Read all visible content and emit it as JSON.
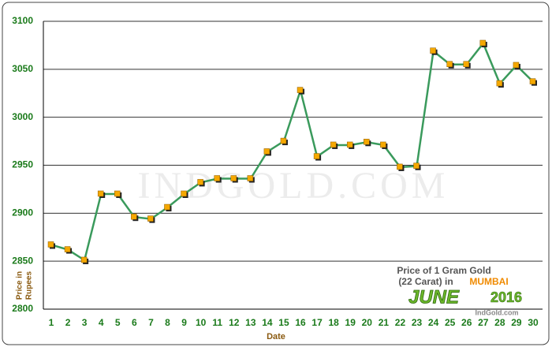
{
  "chart_data": {
    "type": "line",
    "watermark": "INDGOLD.COM",
    "xlabel": "Date",
    "ylabel": [
      "Price in",
      "Rupees"
    ],
    "caption": {
      "line1": "Price of 1 Gram Gold",
      "line2": "(22 Carat) in",
      "city": "MUMBAI",
      "month": "JUNE",
      "year": "2016",
      "source": "IndGold.com"
    },
    "categories": [
      "1",
      "2",
      "3",
      "4",
      "5",
      "6",
      "7",
      "8",
      "9",
      "10",
      "11",
      "12",
      "13",
      "14",
      "15",
      "16",
      "17",
      "18",
      "19",
      "20",
      "21",
      "22",
      "23",
      "24",
      "25",
      "26",
      "27",
      "28",
      "29",
      "30"
    ],
    "series": [
      {
        "color": "#3a9a5c",
        "marker_color": "#f5a800",
        "values": [
          2867,
          2862,
          2851,
          2920,
          2920,
          2896,
          2894,
          2906,
          2920,
          2932,
          2936,
          2936,
          2936,
          2964,
          2975,
          3028,
          2959,
          2971,
          2971,
          2974,
          2971,
          2948,
          2949,
          3069,
          3055,
          3055,
          3077,
          3035,
          3054,
          3037
        ]
      }
    ],
    "ylim": [
      2800,
      3100
    ],
    "yticks": [
      2800,
      2850,
      2900,
      2950,
      3000,
      3050,
      3100
    ],
    "grid": true
  }
}
